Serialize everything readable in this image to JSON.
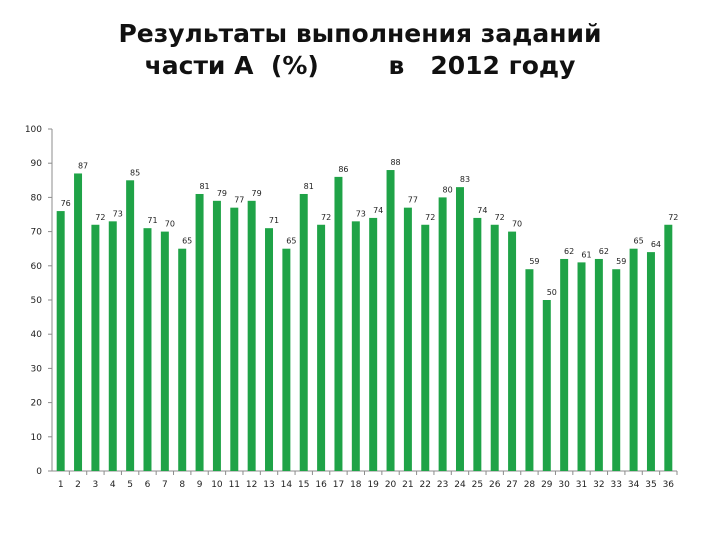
{
  "chart_data": {
    "type": "bar",
    "title_lines": [
      "Результаты выполнения заданий",
      "части А  (%)        в   2012 году"
    ],
    "categories": [
      "1",
      "2",
      "3",
      "4",
      "5",
      "6",
      "7",
      "8",
      "9",
      "10",
      "11",
      "12",
      "13",
      "14",
      "15",
      "16",
      "17",
      "18",
      "19",
      "20",
      "21",
      "22",
      "23",
      "24",
      "25",
      "26",
      "27",
      "28",
      "29",
      "30",
      "31",
      "32",
      "33",
      "34",
      "35",
      "36"
    ],
    "values": [
      76,
      87,
      72,
      73,
      85,
      71,
      70,
      65,
      81,
      79,
      77,
      79,
      71,
      65,
      81,
      72,
      86,
      73,
      74,
      88,
      77,
      72,
      80,
      83,
      74,
      72,
      70,
      59,
      50,
      62,
      61,
      62,
      59,
      65,
      64,
      72
    ],
    "ylim": [
      0,
      100
    ],
    "yticks": [
      0,
      10,
      20,
      30,
      40,
      50,
      60,
      70,
      80,
      90,
      100
    ],
    "grid": false,
    "bar_color": "#1fa347"
  }
}
